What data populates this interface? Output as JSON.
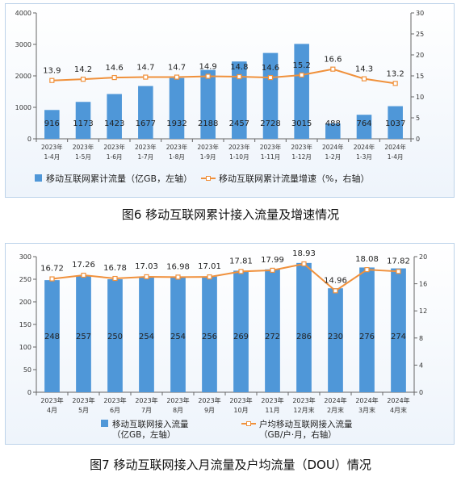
{
  "captions": {
    "fig6": "图6 移动互联网累计接入流量及增速情况",
    "fig7": "图7 移动互联网接入月流量及户均流量（DOU）情况"
  },
  "colors": {
    "bar": "#4f97d8",
    "line": "#f0913c",
    "axis": "#666666"
  },
  "chart_data": [
    {
      "type": "bar",
      "categories": [
        [
          "2023年",
          "1-4月"
        ],
        [
          "2023年",
          "1-5月"
        ],
        [
          "2023年",
          "1-6月"
        ],
        [
          "2023年",
          "1-7月"
        ],
        [
          "2023年",
          "1-8月"
        ],
        [
          "2023年",
          "1-9月"
        ],
        [
          "2023年",
          "1-10月"
        ],
        [
          "2023年",
          "1-11月"
        ],
        [
          "2023年",
          "1-12月"
        ],
        [
          "2024年",
          "1-2月"
        ],
        [
          "2024年",
          "1-3月"
        ],
        [
          "2024年",
          "1-4月"
        ]
      ],
      "series": [
        {
          "name": "移动互联网累计流量（亿GB，左轴）",
          "kind": "bar",
          "axis": "left",
          "values": [
            916,
            1173,
            1423,
            1677,
            1932,
            2188,
            2457,
            2728,
            3015,
            488,
            764,
            1037
          ]
        },
        {
          "name": "移动互联网累计流量增速（%，右轴）",
          "kind": "line",
          "axis": "right",
          "values": [
            13.9,
            14.2,
            14.6,
            14.7,
            14.7,
            14.9,
            14.8,
            14.6,
            15.2,
            16.6,
            14.3,
            13.2
          ]
        }
      ],
      "ylim_left": [
        0,
        4000
      ],
      "yticks_left": [
        0,
        1000,
        2000,
        3000,
        4000
      ],
      "ylim_right": [
        0,
        30
      ],
      "yticks_right": [
        0,
        5,
        10,
        15,
        20,
        25,
        30
      ],
      "grid": false,
      "legend": "bottom"
    },
    {
      "type": "bar",
      "categories": [
        [
          "2023年",
          "4月"
        ],
        [
          "2023年",
          "5月"
        ],
        [
          "2023年",
          "6月"
        ],
        [
          "2023年",
          "7月"
        ],
        [
          "2023年",
          "8月"
        ],
        [
          "2023年",
          "9月"
        ],
        [
          "2023年",
          "10月"
        ],
        [
          "2023年",
          "11月"
        ],
        [
          "2023年",
          "12月末"
        ],
        [
          "2024年",
          "2月末"
        ],
        [
          "2024年",
          "3月末"
        ],
        [
          "2024年",
          "4月末"
        ]
      ],
      "series": [
        {
          "name": [
            "移动互联网接入流量",
            "（亿GB，左轴）"
          ],
          "kind": "bar",
          "axis": "left",
          "values": [
            248,
            257,
            250,
            254,
            254,
            256,
            269,
            272,
            286,
            230,
            276,
            274
          ]
        },
        {
          "name": [
            "户均移动互联网接入流量",
            "（GB/户·月，右轴）"
          ],
          "kind": "line",
          "axis": "right",
          "values": [
            16.72,
            17.26,
            16.78,
            17.03,
            16.98,
            17.01,
            17.81,
            17.99,
            18.93,
            14.96,
            18.08,
            17.82
          ]
        }
      ],
      "ylim_left": [
        0,
        300
      ],
      "yticks_left": [
        0,
        50,
        100,
        150,
        200,
        250,
        300
      ],
      "ylim_right": [
        0,
        20
      ],
      "yticks_right": [
        0,
        4,
        8,
        12,
        16,
        20
      ],
      "grid": false,
      "legend": "bottom"
    }
  ]
}
